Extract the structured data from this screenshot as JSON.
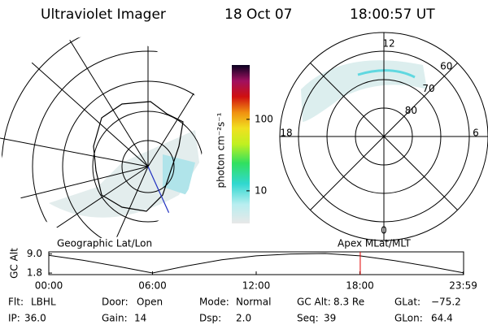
{
  "header": {
    "title": "Ultraviolet Imager",
    "date": "18 Oct 07",
    "time": "18:00:57 UT"
  },
  "left_panel": {
    "label": "Geographic Lat/Lon"
  },
  "colorbar": {
    "label": "photon cm⁻²s⁻¹",
    "log": true,
    "clim": [
      3.5,
      575
    ],
    "ticks": [
      10,
      100
    ]
  },
  "right_panel": {
    "label": "Apex MLat/MLT",
    "mlt_labels": [
      "12",
      "6",
      "0",
      "18"
    ],
    "lat_rings": [
      80,
      70,
      60
    ]
  },
  "altitude_plot": {
    "ylabel": "GC Alt",
    "ylim": [
      1.2,
      9.8
    ],
    "yticks": [
      1.8,
      {
        "value": 9,
        "label": "9.0"
      }
    ],
    "xlim": [
      0,
      24
    ],
    "xticks": [
      {
        "value": 0,
        "label": "00:00"
      },
      {
        "value": 6,
        "label": "06:00"
      },
      {
        "value": 12,
        "label": "12:00"
      },
      {
        "value": 18,
        "label": "18:00"
      },
      {
        "value": 23.98,
        "label": "23:59"
      }
    ],
    "x": [
      0,
      2,
      4,
      6,
      8,
      10,
      12,
      14,
      16,
      18,
      20,
      22,
      23.98
    ],
    "values": [
      8.5,
      6.6,
      4.3,
      1.8,
      4.5,
      6.8,
      8.3,
      9.0,
      9.2,
      8.3,
      6.5,
      4.3,
      1.9
    ],
    "marker": 18.02,
    "marker_color": "#e00000"
  },
  "info": [
    [
      {
        "label": "Flt:",
        "value": "LBHL"
      },
      {
        "label": "Door:",
        "value": "Open"
      },
      {
        "label": "Mode:",
        "value": "Normal"
      },
      {
        "label": "GC Alt:",
        "value": "8.3 Re"
      },
      {
        "label": "GLat:",
        "value": "−75.2"
      }
    ],
    [
      {
        "label": "IP:",
        "value": "36.0"
      },
      {
        "label": "Gain:",
        "value": "14"
      },
      {
        "label": "Dsp:",
        "value": "2.0"
      },
      {
        "label": "Seq:",
        "value": "39"
      },
      {
        "label": "GLon:",
        "value": "64.4"
      }
    ]
  ]
}
